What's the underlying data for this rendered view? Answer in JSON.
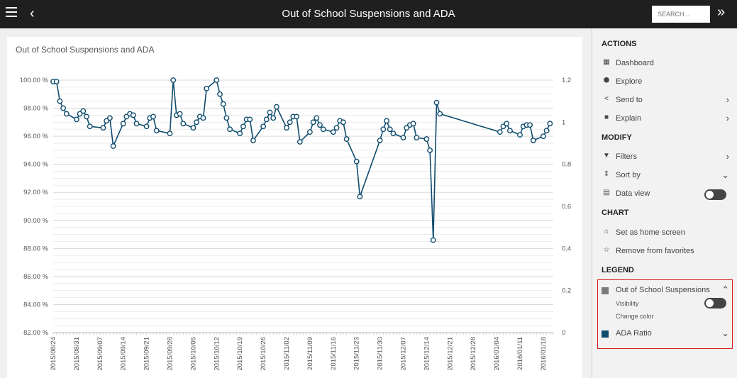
{
  "header": {
    "title": "Out of School Suspensions and ADA",
    "search_placeholder": "SEARCH...",
    "menu_icon": "hamburger-icon",
    "back_icon": "chevron-left-icon",
    "expand_icon": "double-chevron-right-icon"
  },
  "card": {
    "title": "Out of School Suspensions and ADA"
  },
  "sidebar": {
    "actions_heading": "ACTIONS",
    "actions": [
      {
        "label": "Dashboard",
        "icon": "grid-icon",
        "glyph": "▦"
      },
      {
        "label": "Explore",
        "icon": "cube-icon",
        "glyph": "⬢"
      },
      {
        "label": "Send to",
        "icon": "share-icon",
        "glyph": "<",
        "arrow": "›"
      },
      {
        "label": "Explain",
        "icon": "book-icon",
        "glyph": "■",
        "arrow": "›"
      }
    ],
    "modify_heading": "MODIFY",
    "modify": [
      {
        "label": "Filters",
        "icon": "filter-icon",
        "glyph": "▼",
        "arrow": "›"
      },
      {
        "label": "Sort by",
        "icon": "sort-icon",
        "glyph": "⇕",
        "arrow": "⌄"
      },
      {
        "label": "Data view",
        "icon": "table-icon",
        "glyph": "▤"
      }
    ],
    "chart_heading": "CHART",
    "chart": [
      {
        "label": "Set as home screen",
        "icon": "home-icon",
        "glyph": "⌂"
      },
      {
        "label": "Remove from favorites",
        "icon": "star-icon",
        "glyph": "☆"
      }
    ],
    "legend_heading": "LEGEND",
    "legend": {
      "series1": "Out of School Suspensions",
      "series1_color": "#7a7a7a",
      "visibility": "Visibility",
      "change_color": "Change color",
      "series2": "ADA Ratio",
      "series2_color": "#0f4c6e",
      "collapse_arrow": "⌃",
      "expand_arrow": "⌄"
    }
  },
  "chart_data": {
    "type": "line",
    "title": "Out of School Suspensions and ADA",
    "y_left_ticks": [
      "100.00 %",
      "98.00 %",
      "96.00 %",
      "94.00 %",
      "92.00 %",
      "90.00 %",
      "88.00 %",
      "86.00 %",
      "84.00 %",
      "82.00 %"
    ],
    "y_left_range": [
      82,
      100
    ],
    "y_right_ticks": [
      "1.2",
      "1",
      "0.8",
      "0.6",
      "0.4",
      "0.2",
      "0"
    ],
    "y_right_range": [
      0,
      1.2
    ],
    "x_start": "2015-08-24",
    "x_end": "2016-01-21",
    "x_ticks": [
      "2015/08/24",
      "2015/08/31",
      "2015/09/07",
      "2015/09/14",
      "2015/09/21",
      "2015/09/28",
      "2015/10/05",
      "2015/10/12",
      "2015/10/19",
      "2015/10/26",
      "2015/11/02",
      "2015/11/09",
      "2015/11/16",
      "2015/11/23",
      "2015/11/30",
      "2015/12/07",
      "2015/12/14",
      "2015/12/21",
      "2015/12/28",
      "2016/01/04",
      "2016/01/11",
      "2016/01/18"
    ],
    "series_color": "#0f4c6e",
    "series": [
      {
        "name": "ADA Ratio",
        "points": [
          [
            "2015-08-24",
            99.9
          ],
          [
            "2015-08-25",
            99.9
          ],
          [
            "2015-08-26",
            98.5
          ],
          [
            "2015-08-27",
            98.0
          ],
          [
            "2015-08-28",
            97.6
          ],
          [
            "2015-08-31",
            97.2
          ],
          [
            "2015-09-01",
            97.6
          ],
          [
            "2015-09-02",
            97.8
          ],
          [
            "2015-09-03",
            97.4
          ],
          [
            "2015-09-04",
            96.7
          ],
          [
            "2015-09-08",
            96.6
          ],
          [
            "2015-09-09",
            97.1
          ],
          [
            "2015-09-10",
            97.3
          ],
          [
            "2015-09-11",
            95.3
          ],
          [
            "2015-09-14",
            96.9
          ],
          [
            "2015-09-15",
            97.4
          ],
          [
            "2015-09-16",
            97.6
          ],
          [
            "2015-09-17",
            97.5
          ],
          [
            "2015-09-18",
            96.9
          ],
          [
            "2015-09-21",
            96.7
          ],
          [
            "2015-09-22",
            97.3
          ],
          [
            "2015-09-23",
            97.4
          ],
          [
            "2015-09-24",
            96.4
          ],
          [
            "2015-09-28",
            96.2
          ],
          [
            "2015-09-29",
            100.0
          ],
          [
            "2015-09-30",
            97.5
          ],
          [
            "2015-10-01",
            97.6
          ],
          [
            "2015-10-02",
            96.9
          ],
          [
            "2015-10-05",
            96.6
          ],
          [
            "2015-10-06",
            97.0
          ],
          [
            "2015-10-07",
            97.4
          ],
          [
            "2015-10-08",
            97.3
          ],
          [
            "2015-10-09",
            99.4
          ],
          [
            "2015-10-12",
            100.0
          ],
          [
            "2015-10-13",
            99.0
          ],
          [
            "2015-10-14",
            98.3
          ],
          [
            "2015-10-15",
            97.3
          ],
          [
            "2015-10-16",
            96.5
          ],
          [
            "2015-10-19",
            96.2
          ],
          [
            "2015-10-20",
            96.7
          ],
          [
            "2015-10-21",
            97.2
          ],
          [
            "2015-10-22",
            97.2
          ],
          [
            "2015-10-23",
            95.7
          ],
          [
            "2015-10-26",
            96.7
          ],
          [
            "2015-10-27",
            97.2
          ],
          [
            "2015-10-28",
            97.7
          ],
          [
            "2015-10-29",
            97.3
          ],
          [
            "2015-10-30",
            98.1
          ],
          [
            "2015-11-02",
            96.6
          ],
          [
            "2015-11-03",
            97.0
          ],
          [
            "2015-11-04",
            97.4
          ],
          [
            "2015-11-05",
            97.4
          ],
          [
            "2015-11-06",
            95.6
          ],
          [
            "2015-11-09",
            96.3
          ],
          [
            "2015-11-10",
            97.0
          ],
          [
            "2015-11-11",
            97.3
          ],
          [
            "2015-11-12",
            96.8
          ],
          [
            "2015-11-13",
            96.5
          ],
          [
            "2015-11-16",
            96.3
          ],
          [
            "2015-11-17",
            96.6
          ],
          [
            "2015-11-18",
            97.1
          ],
          [
            "2015-11-19",
            97.0
          ],
          [
            "2015-11-20",
            95.8
          ],
          [
            "2015-11-23",
            94.2
          ],
          [
            "2015-11-24",
            91.7
          ],
          [
            "2015-11-30",
            95.7
          ],
          [
            "2015-12-01",
            96.5
          ],
          [
            "2015-12-02",
            97.1
          ],
          [
            "2015-12-03",
            96.5
          ],
          [
            "2015-12-04",
            96.2
          ],
          [
            "2015-12-07",
            95.9
          ],
          [
            "2015-12-08",
            96.6
          ],
          [
            "2015-12-09",
            96.8
          ],
          [
            "2015-12-10",
            96.9
          ],
          [
            "2015-12-11",
            95.9
          ],
          [
            "2015-12-14",
            95.8
          ],
          [
            "2015-12-15",
            95.0
          ],
          [
            "2015-12-16",
            88.6
          ],
          [
            "2015-12-17",
            98.4
          ],
          [
            "2015-12-18",
            97.6
          ],
          [
            "2016-01-05",
            96.3
          ],
          [
            "2016-01-06",
            96.7
          ],
          [
            "2016-01-07",
            96.9
          ],
          [
            "2016-01-08",
            96.4
          ],
          [
            "2016-01-11",
            96.1
          ],
          [
            "2016-01-12",
            96.7
          ],
          [
            "2016-01-13",
            96.8
          ],
          [
            "2016-01-14",
            96.8
          ],
          [
            "2016-01-15",
            95.7
          ],
          [
            "2016-01-18",
            96.0
          ],
          [
            "2016-01-19",
            96.4
          ],
          [
            "2016-01-20",
            96.9
          ]
        ]
      }
    ]
  }
}
